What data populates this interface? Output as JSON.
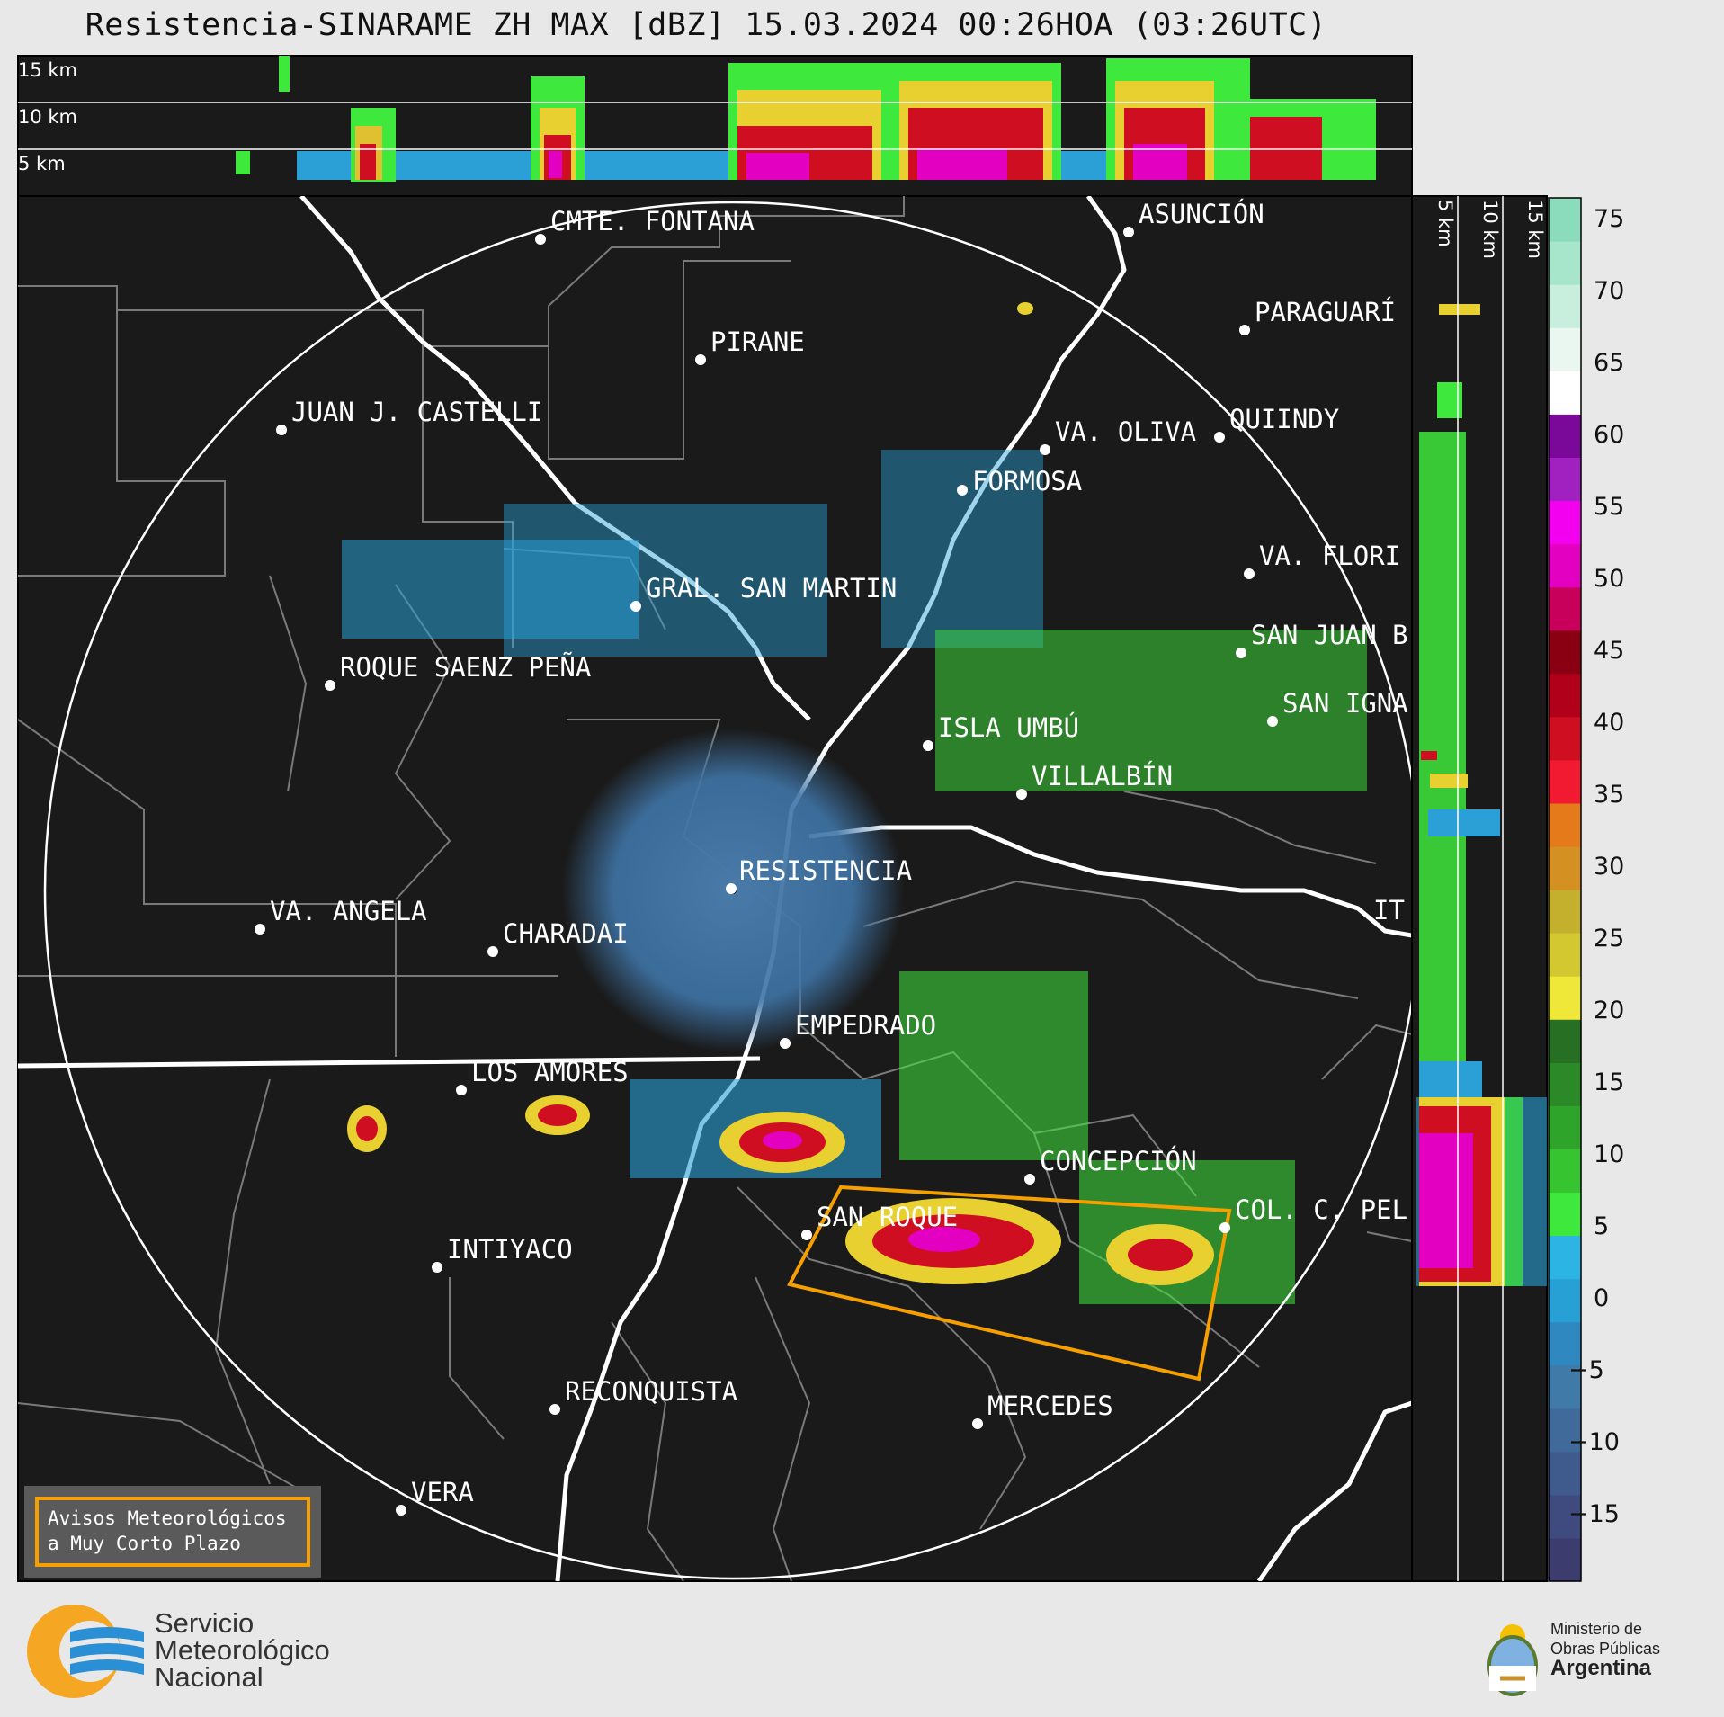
{
  "header": {
    "title": "Resistencia-SINARAME ZH MAX [dBZ] 15.03.2024 00:26HOA (03:26UTC)"
  },
  "top_profile": {
    "height_labels": [
      "15 km",
      "10 km",
      "5 km"
    ]
  },
  "side_profile": {
    "height_labels": [
      "5 km",
      "10 km",
      "15 km"
    ]
  },
  "cities": [
    {
      "name": "CMTE. FONTANA"
    },
    {
      "name": "ASUNCIÓN"
    },
    {
      "name": "PARAGUARÍ"
    },
    {
      "name": "PIRANE"
    },
    {
      "name": "JUAN J. CASTELLI"
    },
    {
      "name": "VA. OLIVA"
    },
    {
      "name": "QUIINDY"
    },
    {
      "name": "FORMOSA"
    },
    {
      "name": "VA. FLORI"
    },
    {
      "name": "GRAL. SAN MARTIN"
    },
    {
      "name": "SAN JUAN B"
    },
    {
      "name": "ROQUE SAENZ PEÑA"
    },
    {
      "name": "SAN IGNA"
    },
    {
      "name": "ISLA UMBÚ"
    },
    {
      "name": "VILLALBÍN"
    },
    {
      "name": "RESISTENCIA"
    },
    {
      "name": "VA. ANGELA"
    },
    {
      "name": "CHARADAI"
    },
    {
      "name": "IT"
    },
    {
      "name": "EMPEDRADO"
    },
    {
      "name": "LOS AMORES"
    },
    {
      "name": "CONCEPCIÓN"
    },
    {
      "name": "SAN ROQUE"
    },
    {
      "name": "COL. C. PEL"
    },
    {
      "name": "INTIYACO"
    },
    {
      "name": "RECONQUISTA"
    },
    {
      "name": "MERCEDES"
    },
    {
      "name": "VERA"
    }
  ],
  "colorbar": {
    "ticks": [
      "75",
      "70",
      "65",
      "60",
      "55",
      "50",
      "45",
      "40",
      "35",
      "30",
      "25",
      "20",
      "15",
      "10",
      "5",
      "0",
      "−5",
      "−10",
      "−15"
    ],
    "range": [
      -20,
      77
    ],
    "colors": [
      "#3d3c6e",
      "#3f4a7e",
      "#3f5a8c",
      "#406a9a",
      "#3f7aa8",
      "#2f88bf",
      "#27a0d6",
      "#2cb4e4",
      "#3fe83c",
      "#37c431",
      "#2fa42a",
      "#2b8a27",
      "#276f22",
      "#f0e838",
      "#d4c830",
      "#c4b02c",
      "#d49020",
      "#e47a1a",
      "#f21a30",
      "#d00e22",
      "#b0001a",
      "#8a0012",
      "#c8005c",
      "#e400c0",
      "#f400f0",
      "#a020c0",
      "#7a0898",
      "#ffffff",
      "#eaf6f0",
      "#c8eede",
      "#a8e6cc",
      "#8adcbc"
    ]
  },
  "notice": {
    "line1": "Avisos Meteorológicos",
    "line2": "a Muy Corto Plazo"
  },
  "footer": {
    "smn": {
      "line1": "Servicio",
      "line2": "Meteorológico",
      "line3": "Nacional"
    },
    "ministry": {
      "line1": "Ministerio de",
      "line2": "Obras Públicas",
      "line3": "Argentina"
    }
  }
}
